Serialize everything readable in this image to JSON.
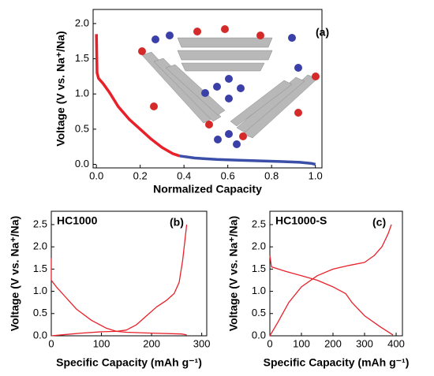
{
  "chart_data": [
    {
      "type": "line",
      "annotation": "(a)",
      "xlabel": "Normalized Capacity",
      "ylabel": "Voltage (V vs. Na⁺/Na)",
      "xlim": [
        -0.015,
        1.03
      ],
      "ylim": [
        -0.05,
        2.2
      ],
      "xticks": [
        {
          "value": 0,
          "label": "0.0"
        },
        {
          "value": 0.2,
          "label": "0.2"
        },
        {
          "value": 0.4,
          "label": "0.4"
        },
        {
          "value": 0.6,
          "label": "0.6"
        },
        {
          "value": 0.8,
          "label": "0.8"
        },
        {
          "value": 1,
          "label": "1.0"
        }
      ],
      "yticks": [
        {
          "value": 0,
          "label": "0.0"
        },
        {
          "value": 0.5,
          "label": "0.5"
        },
        {
          "value": 1,
          "label": "1.0"
        },
        {
          "value": 1.5,
          "label": "1.5"
        },
        {
          "value": 2,
          "label": "2.0"
        }
      ],
      "series": [
        {
          "color": "#e8202a",
          "x": [
            0,
            0.003,
            0.01,
            0.03,
            0.06,
            0.1,
            0.15,
            0.2,
            0.25,
            0.3,
            0.35,
            0.38
          ],
          "values": [
            1.85,
            1.3,
            1.22,
            1.15,
            1.02,
            0.82,
            0.64,
            0.5,
            0.36,
            0.24,
            0.15,
            0.12
          ]
        },
        {
          "color": "#3b4ea8",
          "x": [
            0.38,
            0.45,
            0.55,
            0.65,
            0.75,
            0.85,
            0.93,
            0.98,
            1.0
          ],
          "values": [
            0.12,
            0.09,
            0.07,
            0.06,
            0.05,
            0.04,
            0.03,
            0.015,
            0
          ]
        }
      ]
    },
    {
      "type": "line",
      "label": "HC1000",
      "annotation": "(b)",
      "xlabel": "Specific Capacity (mAh g⁻¹)",
      "ylabel": "Voltage (V vs. Na⁺/Na)",
      "xlim": [
        0,
        310
      ],
      "ylim": [
        0,
        2.8
      ],
      "xticks": [
        0,
        100,
        200,
        300
      ],
      "yticks": [
        {
          "value": 0,
          "label": "0.0"
        },
        {
          "value": 0.5,
          "label": "0.5"
        },
        {
          "value": 1,
          "label": "1.0"
        },
        {
          "value": 1.5,
          "label": "1.5"
        },
        {
          "value": 2,
          "label": "2.0"
        },
        {
          "value": 2.5,
          "label": "2.5"
        }
      ],
      "series": [
        {
          "color": "#e8202a",
          "x": [
            0,
            0,
            10,
            30,
            50,
            80,
            110,
            130,
            150,
            200,
            260,
            270
          ],
          "values": [
            1.75,
            1.25,
            1.1,
            0.85,
            0.6,
            0.35,
            0.17,
            0.1,
            0.08,
            0.06,
            0.04,
            0.02
          ]
        },
        {
          "color": "#e8202a",
          "x": [
            0,
            30,
            60,
            100,
            130,
            150,
            170,
            190,
            210,
            230,
            245,
            255,
            262,
            270
          ],
          "values": [
            0,
            0.03,
            0.06,
            0.09,
            0.1,
            0.13,
            0.25,
            0.45,
            0.65,
            0.8,
            0.95,
            1.2,
            1.7,
            2.5
          ]
        }
      ]
    },
    {
      "type": "line",
      "label": "HC1000-S",
      "annotation": "(c)",
      "xlabel": "Specific Capacity (mAh g⁻¹)",
      "ylabel": "Voltage (V vs. Na⁺/Na)",
      "xlim": [
        0,
        420
      ],
      "ylim": [
        0,
        2.8
      ],
      "xticks": [
        0,
        100,
        200,
        300,
        400
      ],
      "yticks": [
        {
          "value": 0,
          "label": "0.0"
        },
        {
          "value": 0.5,
          "label": "0.5"
        },
        {
          "value": 1,
          "label": "1.0"
        },
        {
          "value": 1.5,
          "label": "1.5"
        },
        {
          "value": 2,
          "label": "2.0"
        },
        {
          "value": 2.5,
          "label": "2.5"
        }
      ],
      "series": [
        {
          "color": "#e8202a",
          "x": [
            0,
            5,
            50,
            100,
            150,
            200,
            240,
            260,
            300,
            350,
            390
          ],
          "values": [
            1.8,
            1.55,
            1.45,
            1.35,
            1.25,
            1.1,
            0.95,
            0.75,
            0.45,
            0.2,
            0.02
          ]
        },
        {
          "color": "#e8202a",
          "x": [
            0,
            25,
            60,
            100,
            150,
            200,
            250,
            300,
            330,
            355,
            375,
            385
          ],
          "values": [
            0,
            0.3,
            0.75,
            1.1,
            1.35,
            1.5,
            1.58,
            1.65,
            1.8,
            2.0,
            2.3,
            2.5
          ]
        }
      ]
    }
  ]
}
